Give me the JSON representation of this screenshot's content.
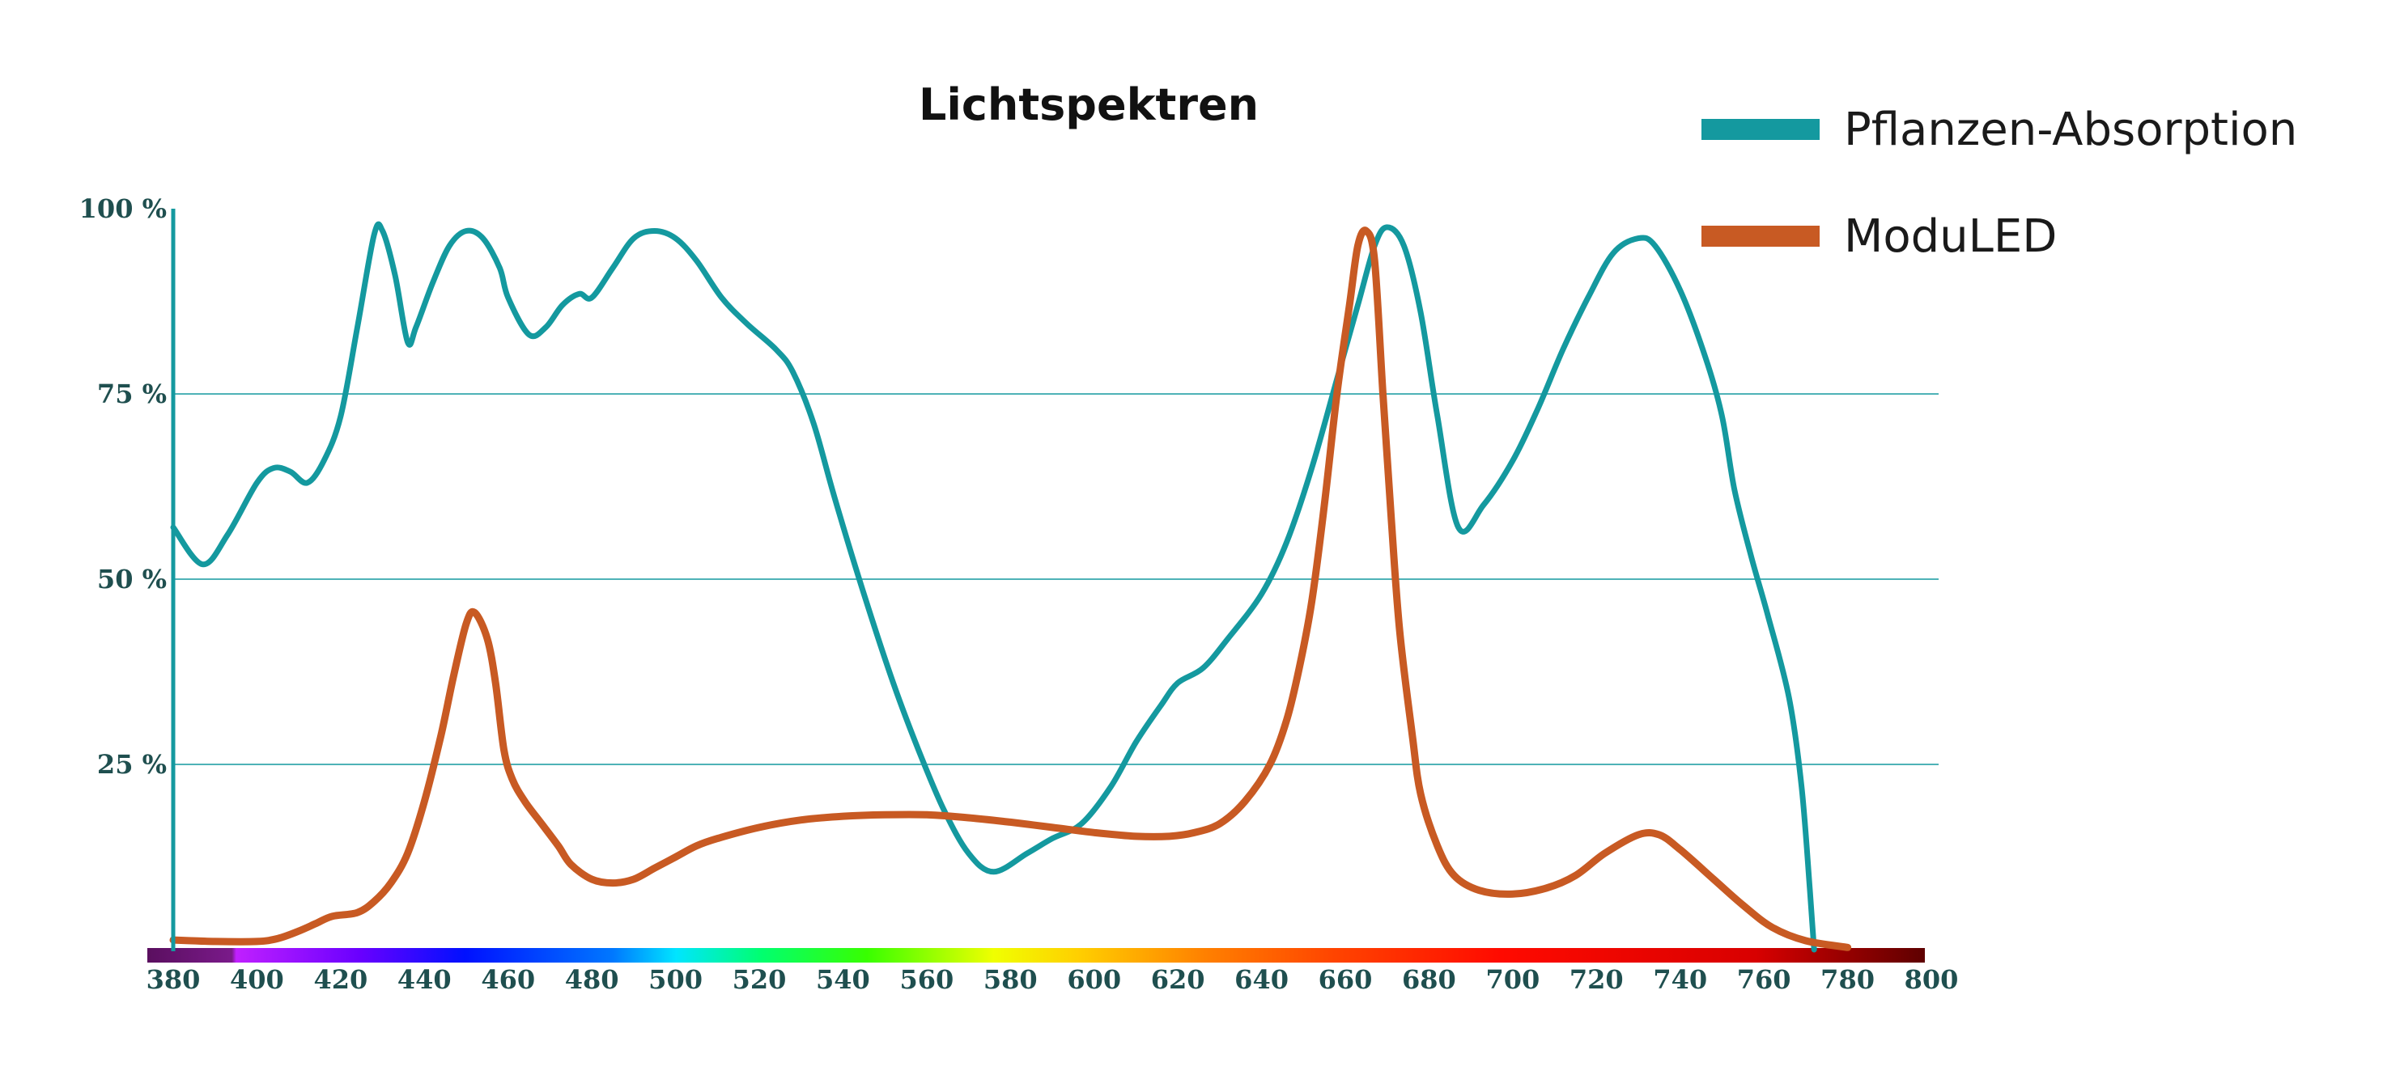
{
  "chart_data": {
    "type": "line",
    "title": "Lichtspektren",
    "xlabel": "",
    "ylabel": "",
    "xlim": [
      380,
      800
    ],
    "ylim": [
      0,
      100
    ],
    "x_ticks": [
      380,
      400,
      420,
      440,
      460,
      480,
      500,
      520,
      540,
      560,
      580,
      600,
      620,
      640,
      660,
      680,
      700,
      720,
      740,
      760,
      780,
      800
    ],
    "y_ticks": [
      {
        "value": 25,
        "label": "25 %"
      },
      {
        "value": 50,
        "label": "50 %"
      },
      {
        "value": 75,
        "label": "75 %"
      },
      {
        "value": 100,
        "label": "100 %"
      }
    ],
    "grid": "horizontal",
    "legend_position": "top-right",
    "series": [
      {
        "name": "Pflanzen-Absorption",
        "color": "#14999f",
        "points": [
          [
            380,
            57
          ],
          [
            387,
            52
          ],
          [
            393,
            56
          ],
          [
            400,
            63
          ],
          [
            404,
            65
          ],
          [
            408,
            64.5
          ],
          [
            412,
            63
          ],
          [
            416,
            66
          ],
          [
            420,
            72
          ],
          [
            424,
            84
          ],
          [
            428,
            96.5
          ],
          [
            430,
            97
          ],
          [
            433,
            91
          ],
          [
            436,
            82
          ],
          [
            438,
            84
          ],
          [
            442,
            90
          ],
          [
            446,
            95
          ],
          [
            450,
            97
          ],
          [
            454,
            96
          ],
          [
            458,
            92
          ],
          [
            460,
            88
          ],
          [
            465,
            83
          ],
          [
            469,
            84
          ],
          [
            473,
            87
          ],
          [
            477,
            88.5
          ],
          [
            480,
            88
          ],
          [
            485,
            92
          ],
          [
            490,
            96
          ],
          [
            495,
            97
          ],
          [
            500,
            96
          ],
          [
            505,
            93
          ],
          [
            511,
            88
          ],
          [
            517,
            84.5
          ],
          [
            524,
            81
          ],
          [
            528,
            78
          ],
          [
            533,
            71
          ],
          [
            538,
            61
          ],
          [
            545,
            48
          ],
          [
            552,
            36
          ],
          [
            558,
            27
          ],
          [
            564,
            19
          ],
          [
            570,
            13
          ],
          [
            576,
            10.5
          ],
          [
            584,
            13
          ],
          [
            590,
            15
          ],
          [
            597,
            17
          ],
          [
            604,
            22
          ],
          [
            610,
            28
          ],
          [
            616,
            33
          ],
          [
            620,
            36
          ],
          [
            626,
            38
          ],
          [
            632,
            42
          ],
          [
            640,
            48
          ],
          [
            646,
            55
          ],
          [
            652,
            65
          ],
          [
            658,
            77
          ],
          [
            663,
            87
          ],
          [
            667,
            95
          ],
          [
            670,
            97.5
          ],
          [
            674,
            95
          ],
          [
            678,
            86
          ],
          [
            682,
            72
          ],
          [
            687,
            57
          ],
          [
            693,
            60
          ],
          [
            700,
            66
          ],
          [
            706,
            73
          ],
          [
            712,
            81
          ],
          [
            718,
            88
          ],
          [
            724,
            94
          ],
          [
            730,
            96
          ],
          [
            734,
            95
          ],
          [
            740,
            89
          ],
          [
            746,
            80
          ],
          [
            750,
            72
          ],
          [
            753,
            62
          ],
          [
            757,
            53
          ],
          [
            761,
            45
          ],
          [
            766,
            34
          ],
          [
            769,
            22
          ],
          [
            771,
            8
          ],
          [
            772,
            0
          ]
        ]
      },
      {
        "name": "ModuLED",
        "color": "#c85a23",
        "points": [
          [
            380,
            1.3
          ],
          [
            390,
            1.1
          ],
          [
            400,
            1.1
          ],
          [
            405,
            1.5
          ],
          [
            410,
            2.5
          ],
          [
            414,
            3.5
          ],
          [
            418,
            4.5
          ],
          [
            424,
            5
          ],
          [
            428,
            6.5
          ],
          [
            432,
            9
          ],
          [
            436,
            13
          ],
          [
            440,
            20
          ],
          [
            444,
            29
          ],
          [
            447,
            37
          ],
          [
            450,
            44
          ],
          [
            452,
            45.5
          ],
          [
            455,
            42
          ],
          [
            457,
            36
          ],
          [
            459,
            27
          ],
          [
            461,
            23
          ],
          [
            464,
            20
          ],
          [
            468,
            17
          ],
          [
            472,
            14
          ],
          [
            475,
            11.5
          ],
          [
            480,
            9.5
          ],
          [
            485,
            9
          ],
          [
            490,
            9.5
          ],
          [
            495,
            11
          ],
          [
            500,
            12.5
          ],
          [
            505,
            14
          ],
          [
            510,
            15
          ],
          [
            520,
            16.5
          ],
          [
            530,
            17.5
          ],
          [
            540,
            18
          ],
          [
            550,
            18.2
          ],
          [
            560,
            18.2
          ],
          [
            570,
            17.8
          ],
          [
            580,
            17.2
          ],
          [
            590,
            16.5
          ],
          [
            600,
            15.8
          ],
          [
            610,
            15.3
          ],
          [
            618,
            15.3
          ],
          [
            624,
            15.8
          ],
          [
            630,
            17
          ],
          [
            636,
            20
          ],
          [
            642,
            25
          ],
          [
            646,
            31
          ],
          [
            649,
            38
          ],
          [
            652,
            47
          ],
          [
            655,
            60
          ],
          [
            658,
            75
          ],
          [
            661,
            87
          ],
          [
            663,
            95
          ],
          [
            665,
            97
          ],
          [
            667,
            93
          ],
          [
            669,
            75
          ],
          [
            671,
            58
          ],
          [
            673,
            43
          ],
          [
            676,
            29
          ],
          [
            678,
            21
          ],
          [
            682,
            14
          ],
          [
            686,
            10
          ],
          [
            692,
            8
          ],
          [
            700,
            7.5
          ],
          [
            708,
            8.3
          ],
          [
            715,
            10
          ],
          [
            722,
            13
          ],
          [
            730,
            15.5
          ],
          [
            735,
            15.5
          ],
          [
            740,
            13.5
          ],
          [
            748,
            9.5
          ],
          [
            755,
            6
          ],
          [
            762,
            3
          ],
          [
            770,
            1.2
          ],
          [
            780,
            0.3
          ]
        ]
      }
    ]
  },
  "axis_colors": {
    "axis": "#14999f",
    "grid": "#14999f"
  },
  "spectrum_bar": [
    {
      "nm": 380,
      "color": "#5a0f5f"
    },
    {
      "nm": 400,
      "color": "#7a1a8a"
    },
    {
      "nm": 401,
      "color": "#c020ff"
    },
    {
      "nm": 430,
      "color": "#6a00ff"
    },
    {
      "nm": 455,
      "color": "#0010ff"
    },
    {
      "nm": 490,
      "color": "#0078ff"
    },
    {
      "nm": 505,
      "color": "#00e5ff"
    },
    {
      "nm": 525,
      "color": "#00ff70"
    },
    {
      "nm": 550,
      "color": "#38ff00"
    },
    {
      "nm": 580,
      "color": "#f0ff00"
    },
    {
      "nm": 600,
      "color": "#ffcf00"
    },
    {
      "nm": 630,
      "color": "#ff8000"
    },
    {
      "nm": 660,
      "color": "#ff4500"
    },
    {
      "nm": 700,
      "color": "#ff0a00"
    },
    {
      "nm": 760,
      "color": "#d80000"
    },
    {
      "nm": 780,
      "color": "#9a0000"
    },
    {
      "nm": 800,
      "color": "#5e0000"
    }
  ]
}
